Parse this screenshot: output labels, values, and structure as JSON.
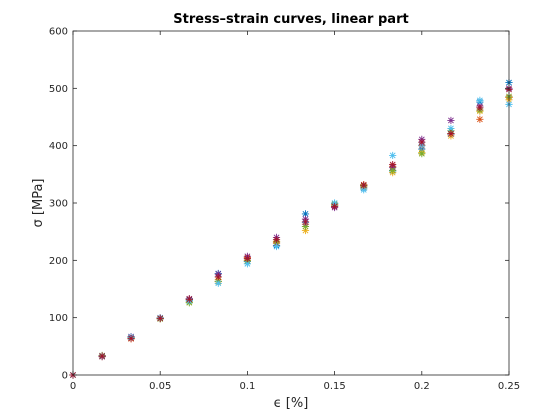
{
  "chart_data": {
    "type": "scatter",
    "title": "Stress–strain curves, linear part",
    "xlabel": "ϵ [%]",
    "ylabel": "σ [MPa]",
    "xlim": [
      0,
      0.25
    ],
    "ylim": [
      0,
      600
    ],
    "xticks": [
      "0",
      "0.05",
      "0.1",
      "0.15",
      "0.2",
      "0.25"
    ],
    "xtick_values": [
      0,
      0.05,
      0.1,
      0.15,
      0.2,
      0.25
    ],
    "yticks": [
      "0",
      "100",
      "200",
      "300",
      "400",
      "500",
      "600"
    ],
    "ytick_values": [
      0,
      100,
      200,
      300,
      400,
      500,
      600
    ],
    "grid": false,
    "marker": "asterisk",
    "x": [
      0,
      0.0167,
      0.0333,
      0.05,
      0.0667,
      0.0833,
      0.1,
      0.1167,
      0.1333,
      0.15,
      0.1667,
      0.1833,
      0.2,
      0.2167,
      0.2333,
      0.25
    ],
    "series": [
      {
        "color": "#0072BD",
        "values": [
          0,
          33,
          66,
          99,
          131,
          177,
          198,
          226,
          281,
          296,
          326,
          356,
          394,
          420,
          476,
          510
        ]
      },
      {
        "color": "#D95319",
        "values": [
          0,
          33,
          63,
          98,
          133,
          163,
          205,
          230,
          263,
          297,
          332,
          364,
          400,
          421,
          446,
          484
        ]
      },
      {
        "color": "#EDB120",
        "values": [
          0,
          32,
          64,
          99,
          127,
          166,
          200,
          233,
          252,
          296,
          328,
          353,
          388,
          417,
          460,
          480
        ]
      },
      {
        "color": "#7E2F8E",
        "values": [
          0,
          32,
          67,
          99,
          133,
          176,
          207,
          240,
          272,
          292,
          330,
          362,
          411,
          444,
          469,
          500
        ]
      },
      {
        "color": "#77AC30",
        "values": [
          0,
          34,
          65,
          98,
          126,
          163,
          199,
          232,
          259,
          299,
          330,
          357,
          386,
          426,
          462,
          486
        ]
      },
      {
        "color": "#4DBEEE",
        "values": [
          0,
          33,
          66,
          100,
          129,
          160,
          194,
          224,
          266,
          300,
          323,
          383,
          401,
          430,
          479,
          472
        ]
      },
      {
        "color": "#A2142F",
        "values": [
          0,
          33,
          64,
          99,
          132,
          171,
          203,
          236,
          267,
          294,
          331,
          367,
          406,
          421,
          466,
          498
        ]
      }
    ]
  }
}
